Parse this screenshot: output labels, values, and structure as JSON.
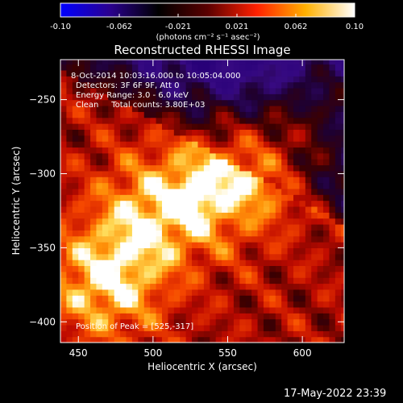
{
  "chart_data": {
    "type": "heatmap",
    "title": "Reconstructed RHESSI Image",
    "xlabel": "Heliocentric X (arcsec)",
    "ylabel": "Heliocentric Y (arcsec)",
    "xlim": [
      438,
      628
    ],
    "ylim": [
      -414,
      -223
    ],
    "x_ticks": [
      450,
      500,
      550,
      600
    ],
    "y_ticks": [
      -250,
      -300,
      -350,
      -400
    ],
    "colorbar": {
      "colormap": "idl-rainbow-heat",
      "range": [
        -0.1,
        0.1
      ],
      "tick_labels": [
        "-0.10",
        "-0.062",
        "-0.021",
        "0.021",
        "0.062",
        "0.10"
      ],
      "label": "(photons cm⁻² s⁻¹ asec⁻²)",
      "colors": [
        "#0000ff",
        "#2a0090",
        "#000000",
        "#5a0000",
        "#ff2000",
        "#ffb000",
        "#ffffff"
      ]
    },
    "annotations": [
      "8-Oct-2014 10:03:16.000 to 10:05:04.000",
      "Detectors: 3F 6F 9F, Att 0",
      "Energy Range: 3.0 - 6.0 keV",
      "Clean     Total counts: 3.80E+03"
    ],
    "peak_label": "Position of Peak = [525,-317]",
    "peak": [
      525,
      -317
    ],
    "ridge": [
      [
        470,
        -370
      ],
      [
        500,
        -330
      ],
      [
        525,
        -317
      ],
      [
        555,
        -300
      ],
      [
        590,
        -270
      ],
      [
        615,
        -255
      ]
    ]
  },
  "footer": {
    "timestamp": "17-May-2022 23:39"
  }
}
